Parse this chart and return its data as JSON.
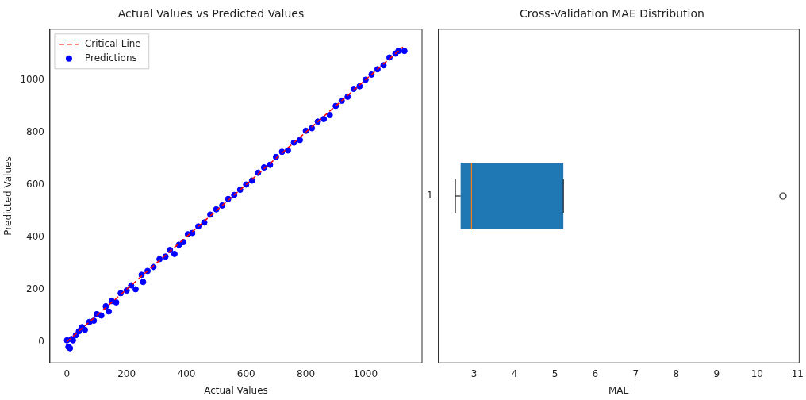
{
  "chart_data": [
    {
      "type": "scatter",
      "title": "Actual Values vs Predicted Values",
      "xlabel": "Actual Values",
      "ylabel": "Predicted Values",
      "series": [
        {
          "type": "line",
          "name": "Critical Line",
          "color": "#ff0000",
          "line_style": "dashed",
          "marker": "none",
          "x": [
            0,
            1125
          ],
          "values": [
            0,
            1125
          ]
        },
        {
          "type": "scatter",
          "name": "Predictions",
          "color": "#0000ff",
          "marker": "circle",
          "x": [
            0,
            5,
            10,
            15,
            20,
            30,
            40,
            50,
            60,
            75,
            90,
            100,
            115,
            130,
            140,
            150,
            165,
            180,
            200,
            215,
            230,
            250,
            255,
            270,
            290,
            310,
            330,
            345,
            360,
            375,
            390,
            405,
            420,
            440,
            460,
            480,
            500,
            520,
            540,
            560,
            580,
            600,
            620,
            640,
            660,
            680,
            700,
            720,
            740,
            760,
            780,
            800,
            820,
            840,
            860,
            880,
            900,
            920,
            940,
            960,
            980,
            1000,
            1020,
            1040,
            1060,
            1080,
            1100,
            1110,
            1130
          ],
          "values": [
            5,
            -20,
            -25,
            10,
            5,
            25,
            40,
            55,
            45,
            75,
            80,
            105,
            100,
            135,
            115,
            155,
            150,
            185,
            195,
            215,
            200,
            255,
            228,
            270,
            285,
            315,
            325,
            350,
            335,
            370,
            380,
            410,
            415,
            440,
            455,
            485,
            505,
            520,
            545,
            560,
            580,
            600,
            615,
            645,
            665,
            675,
            705,
            725,
            730,
            760,
            770,
            805,
            815,
            840,
            850,
            865,
            900,
            920,
            935,
            965,
            975,
            1000,
            1020,
            1040,
            1055,
            1085,
            1100,
            1110,
            1110
          ]
        }
      ],
      "xlim": [
        -57,
        1189
      ],
      "ylim": [
        -81,
        1193
      ],
      "xticks": [
        0,
        200,
        400,
        600,
        800,
        1000
      ],
      "yticks": [
        0,
        200,
        400,
        600,
        800,
        1000
      ],
      "grid": false,
      "legend": "top left"
    },
    {
      "type": "box",
      "title": "Cross-Validation MAE Distribution",
      "xlabel": "MAE",
      "orientation": "horizontal",
      "categories": [
        "1"
      ],
      "boxes": [
        {
          "low": 2.54,
          "q1": 2.67,
          "median": 2.94,
          "q3": 5.21,
          "high": 5.21,
          "outliers": [
            10.64
          ]
        }
      ],
      "color": "#1f77b4",
      "xlim": [
        2.12,
        11.04
      ],
      "xticks": [
        3,
        4,
        5,
        6,
        7,
        8,
        9,
        10,
        11
      ],
      "grid": false
    }
  ]
}
